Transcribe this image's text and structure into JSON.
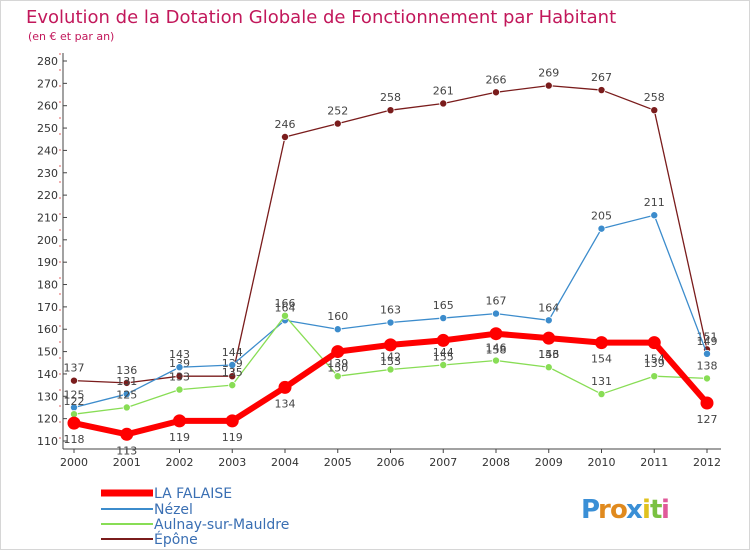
{
  "chart_data": {
    "type": "line",
    "title": "Evolution de la Dotation Globale de Fonctionnement par Habitant",
    "subtitle": "(en € et par an)",
    "x": [
      "2000",
      "2001",
      "2002",
      "2003",
      "2004",
      "2005",
      "2006",
      "2007",
      "2008",
      "2009",
      "2010",
      "2011",
      "2012"
    ],
    "ylim": [
      110,
      280
    ],
    "yticks": [
      110,
      120,
      130,
      140,
      150,
      160,
      170,
      180,
      190,
      200,
      210,
      220,
      230,
      240,
      250,
      260,
      270,
      280
    ],
    "grid": false,
    "series": [
      {
        "name": "LA FALAISE",
        "color": "#ff0000",
        "values": [
          118,
          113,
          119,
          119,
          134,
          150,
          153,
          155,
          158,
          156,
          154,
          154,
          127
        ],
        "labels": [
          "118",
          "113",
          "119",
          "119",
          "134",
          "150",
          "153",
          "155",
          "158",
          "156",
          "154",
          "154",
          "127"
        ]
      },
      {
        "name": "Nézel",
        "color": "#3c8ccc",
        "values": [
          125,
          131,
          143,
          144,
          164,
          160,
          163,
          165,
          167,
          164,
          205,
          211,
          149
        ],
        "labels": [
          "125",
          "131",
          "143",
          "144",
          "164",
          "160",
          "163",
          "165",
          "167",
          "164",
          "205",
          "211",
          "149"
        ]
      },
      {
        "name": "Aulnay-sur-Mauldre",
        "color": "#88dd55",
        "values": [
          122,
          125,
          133,
          135,
          166,
          139,
          142,
          144,
          146,
          143,
          131,
          139,
          138
        ],
        "labels": [
          "122",
          "125",
          "133",
          "135",
          "166",
          "139",
          "142",
          "144",
          "146",
          "143",
          "131",
          "139",
          "138"
        ]
      },
      {
        "name": "Épône",
        "color": "#7a1c1c",
        "values": [
          137,
          136,
          139,
          139,
          246,
          252,
          258,
          261,
          266,
          269,
          267,
          258,
          151
        ],
        "labels": [
          "137",
          "136",
          "139",
          "139",
          "246",
          "252",
          "258",
          "261",
          "266",
          "269",
          "267",
          "258",
          "151"
        ]
      }
    ],
    "legend_position": "bottom-left"
  },
  "logo": {
    "letters": [
      "P",
      "r",
      "o",
      "x",
      "i",
      "t",
      "i"
    ],
    "colors": [
      "#3a8fd6",
      "#e08a1e",
      "#e08a1e",
      "#3a8fd6",
      "#e0c21e",
      "#7ac142",
      "#e05a9a"
    ]
  }
}
